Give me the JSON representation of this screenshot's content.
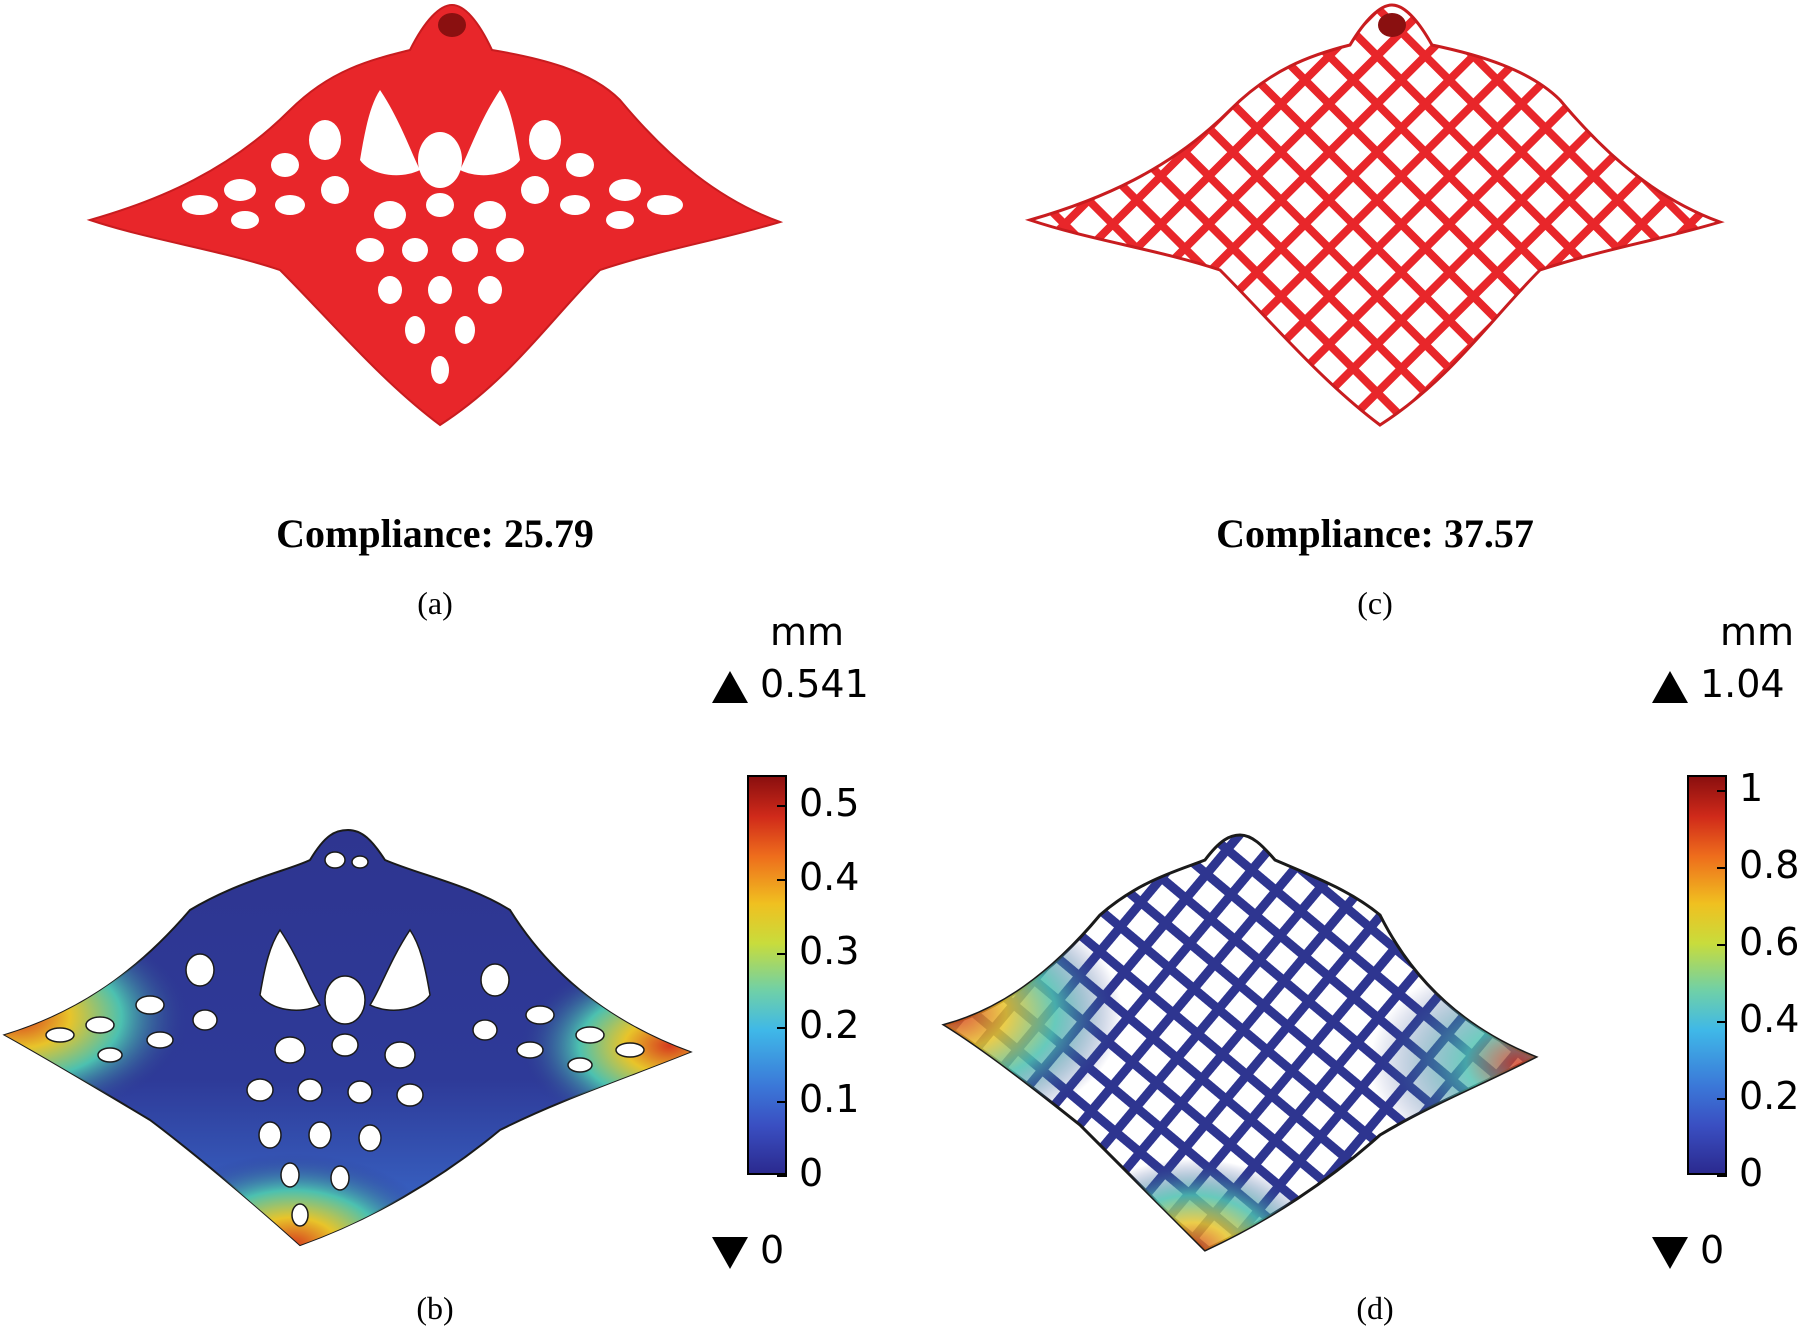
{
  "panels": {
    "a": {
      "label": "(a)",
      "compliance": "Compliance: 25.79"
    },
    "c": {
      "label": "(c)",
      "compliance": "Compliance: 37.57"
    },
    "b": {
      "label": "(b)",
      "unit": "mm",
      "max_label": "0.541",
      "min_label": "0",
      "ticks": [
        "0.5",
        "0.4",
        "0.3",
        "0.2",
        "0.1",
        "0"
      ]
    },
    "d": {
      "label": "(d)",
      "unit": "mm",
      "max_label": "1.04",
      "min_label": "0",
      "ticks": [
        "1",
        "0.8",
        "0.6",
        "0.4",
        "0.2",
        "0"
      ]
    }
  },
  "colors": {
    "shell_red": "#e8262a",
    "shell_blue": "#2e3590",
    "outline": "#1a1a1a"
  }
}
